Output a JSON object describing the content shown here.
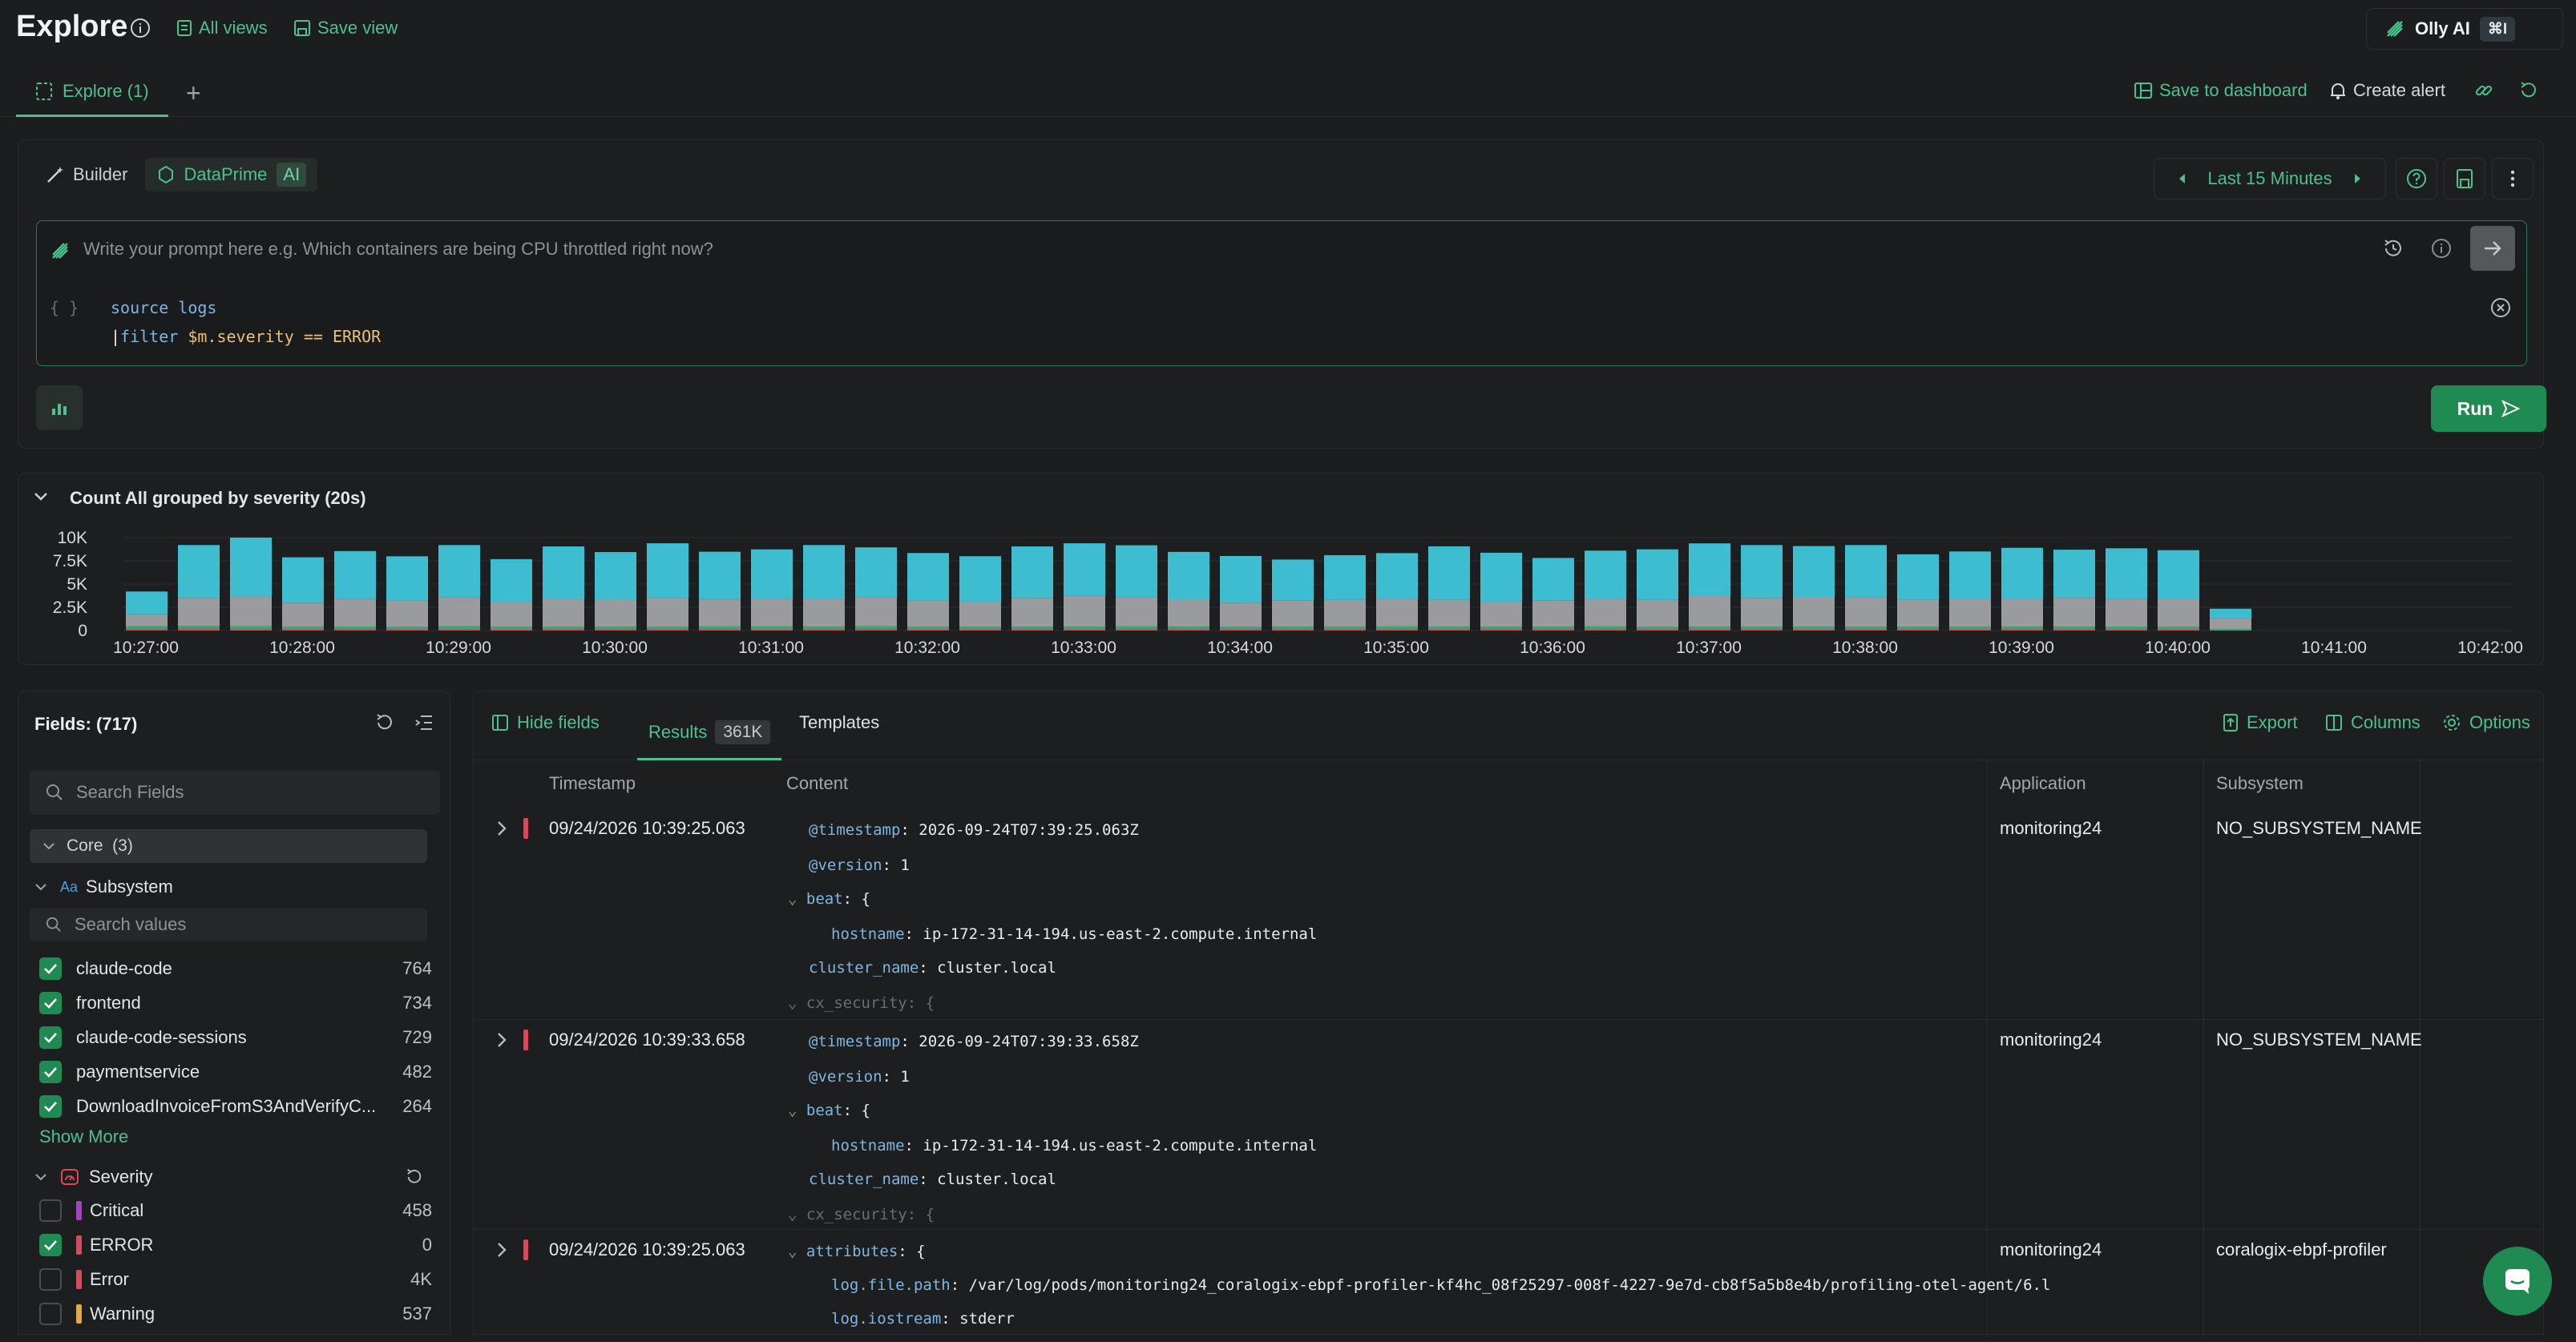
{
  "header": {
    "title": "Explore",
    "all_views": "All views",
    "save_view": "Save view",
    "olly_label": "Olly AI",
    "olly_shortcut": "⌘I"
  },
  "tabs": {
    "active_tab": "Explore (1)",
    "save_to_dashboard": "Save to dashboard",
    "create_alert": "Create alert"
  },
  "query": {
    "builder_label": "Builder",
    "dataprime_label": "DataPrime",
    "ai_tag": "AI",
    "time_range": "Last 15 Minutes",
    "prompt_placeholder": "Write your prompt here e.g. Which containers are being CPU throttled right now?",
    "line1_kw": "source",
    "line1_val": "logs",
    "line2_kw": "filter",
    "line2_val": "$m.severity == ERROR",
    "braces": "{ }",
    "run_label": "Run"
  },
  "chart_panel": {
    "title": "Count All grouped by severity (20s)"
  },
  "chart_data": {
    "type": "bar",
    "stacked": true,
    "y_ticks": [
      "10K",
      "7.5K",
      "5K",
      "2.5K",
      "0"
    ],
    "ylim": [
      0,
      10000
    ],
    "x_ticks": [
      "10:27:00",
      "10:28:00",
      "10:29:00",
      "10:30:00",
      "10:31:00",
      "10:32:00",
      "10:33:00",
      "10:34:00",
      "10:35:00",
      "10:36:00",
      "10:37:00",
      "10:38:00",
      "10:39:00",
      "10:40:00",
      "10:41:00",
      "10:42:00"
    ],
    "series": [
      {
        "color": "#e0455a",
        "values": [
          150,
          200,
          120,
          100,
          110,
          100,
          120,
          90,
          100,
          110,
          100,
          120,
          130,
          110,
          150,
          100,
          100,
          110,
          100,
          120,
          110,
          100,
          110,
          100,
          120,
          100,
          110,
          110,
          120,
          100,
          100,
          110,
          100,
          100,
          110,
          100,
          110,
          100,
          120,
          100,
          0
        ]
      },
      {
        "color": "#3aa673",
        "values": [
          300,
          320,
          350,
          300,
          320,
          300,
          330,
          310,
          300,
          310,
          300,
          320,
          310,
          300,
          320,
          300,
          310,
          300,
          320,
          320,
          310,
          300,
          310,
          300,
          320,
          310,
          300,
          300,
          320,
          300,
          310,
          300,
          320,
          310,
          300,
          310,
          300,
          320,
          310,
          300,
          150
        ]
      },
      {
        "color": "#9a9b9e",
        "values": [
          1300,
          3000,
          3200,
          2600,
          3000,
          2800,
          3100,
          2700,
          3000,
          2900,
          3100,
          2900,
          3000,
          3000,
          3100,
          2800,
          2700,
          3100,
          3300,
          3100,
          2900,
          2600,
          2800,
          2900,
          3000,
          2900,
          2700,
          2800,
          3000,
          2900,
          3300,
          3100,
          3200,
          3200,
          2900,
          3000,
          3000,
          3100,
          3000,
          3000,
          1200
        ]
      },
      {
        "color": "#3ebdd1",
        "values": [
          2450,
          5680,
          6330,
          4880,
          5120,
          4790,
          5650,
          4580,
          5650,
          5120,
          5890,
          5140,
          5290,
          5790,
          5380,
          5140,
          4890,
          5540,
          5670,
          5630,
          5140,
          5020,
          4420,
          4810,
          4890,
          5750,
          5260,
          4600,
          5160,
          5440,
          5670,
          5690,
          5470,
          5590,
          4890,
          5100,
          5490,
          5180,
          5420,
          5250,
          1000
        ]
      }
    ]
  },
  "fields": {
    "title": "Fields: (717)",
    "search_placeholder": "Search Fields",
    "core_group": "Core  (3)",
    "subsystem_icon_text": "Aa",
    "subsystem_label": "Subsystem",
    "values_placeholder": "Search values",
    "subsystem_values": [
      {
        "name": "claude-code",
        "count": "764"
      },
      {
        "name": "frontend",
        "count": "734"
      },
      {
        "name": "claude-code-sessions",
        "count": "729"
      },
      {
        "name": "paymentservice",
        "count": "482"
      },
      {
        "name": "DownloadInvoiceFromS3AndVerifyC...",
        "count": "264"
      }
    ],
    "show_more": "Show More",
    "severity_label": "Severity",
    "severity_values": [
      {
        "name": "Critical",
        "count": "458",
        "color": "#a93fd0",
        "checked": false
      },
      {
        "name": "ERROR",
        "count": "0",
        "color": "#e0455a",
        "checked": true
      },
      {
        "name": "Error",
        "count": "4K",
        "color": "#e0455a",
        "checked": false
      },
      {
        "name": "Warning",
        "count": "537",
        "color": "#e8a83a",
        "checked": false
      }
    ]
  },
  "results": {
    "hide_fields": "Hide fields",
    "results_tab": "Results",
    "results_count": "361K",
    "templates_tab": "Templates",
    "export": "Export",
    "columns": "Columns",
    "options": "Options",
    "col_timestamp": "Timestamp",
    "col_content": "Content",
    "col_application": "Application",
    "col_subsystem": "Subsystem",
    "rows": [
      {
        "timestamp": "09/24/2026 10:39:25.063",
        "application": "monitoring24",
        "subsystem": "NO_SUBSYSTEM_NAME",
        "ts_key": "@timestamp",
        "ts_val": "2026-09-24T07:39:25.063Z",
        "ver_key": "@version",
        "ver_val": "1",
        "beat_key": "beat",
        "host_key": "hostname",
        "host_val": "ip-172-31-14-194.us-east-2.compute.internal",
        "cluster_key": "cluster_name",
        "cluster_val": "cluster.local",
        "sec_key": "cx_security"
      },
      {
        "timestamp": "09/24/2026 10:39:33.658",
        "application": "monitoring24",
        "subsystem": "NO_SUBSYSTEM_NAME",
        "ts_key": "@timestamp",
        "ts_val": "2026-09-24T07:39:33.658Z",
        "ver_key": "@version",
        "ver_val": "1",
        "beat_key": "beat",
        "host_key": "hostname",
        "host_val": "ip-172-31-14-194.us-east-2.compute.internal",
        "cluster_key": "cluster_name",
        "cluster_val": "cluster.local",
        "sec_key": "cx_security"
      },
      {
        "timestamp": "09/24/2026 10:39:25.063",
        "application": "monitoring24",
        "subsystem": "coralogix-ebpf-profiler",
        "attr_key": "attributes",
        "path_key": "log.file.path",
        "path_val": "/var/log/pods/monitoring24_coralogix-ebpf-profiler-kf4hc_08f25297-008f-4227-9e7d-cb8f5a5b8e4b/profiling-otel-agent/6.l",
        "stream_key": "log.iostream",
        "stream_val": "stderr"
      }
    ]
  }
}
